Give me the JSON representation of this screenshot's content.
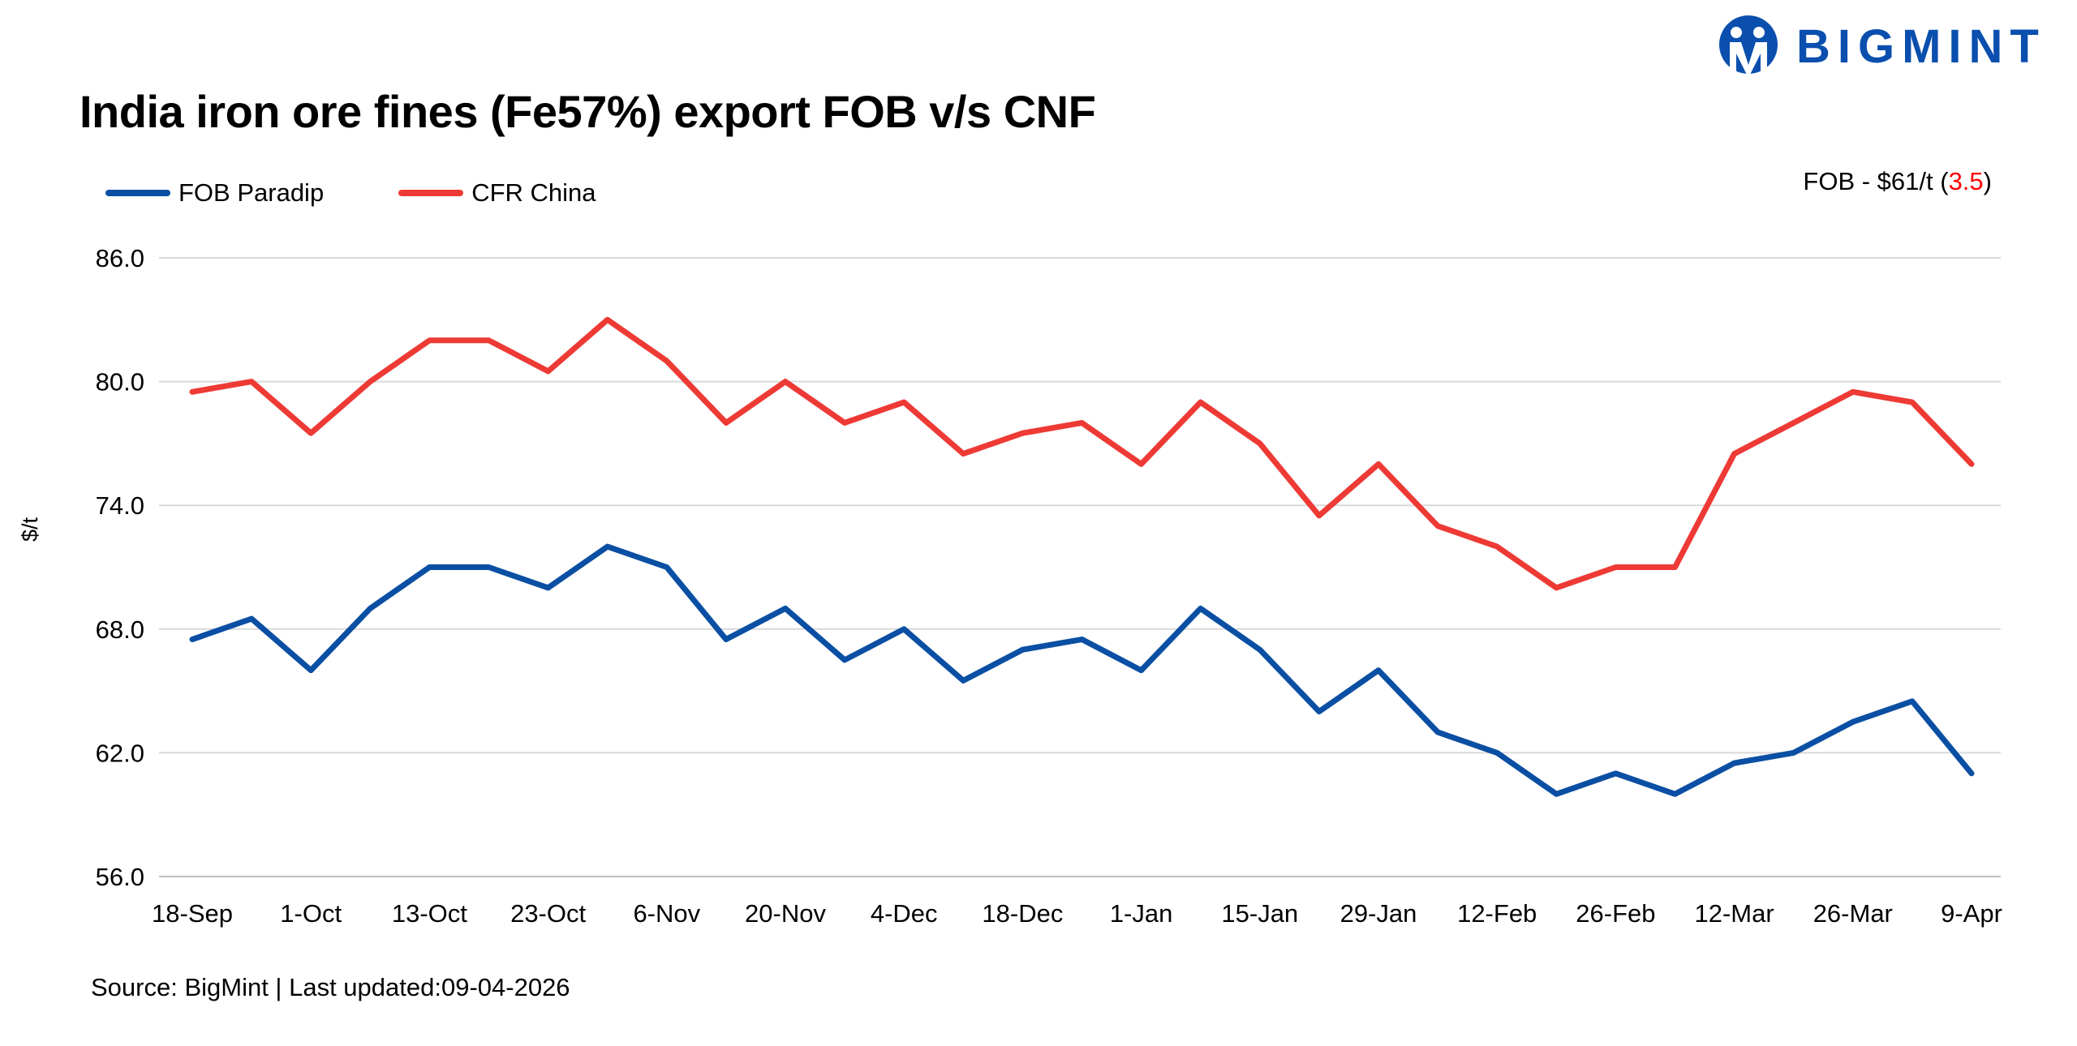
{
  "header": {
    "title": "India iron ore fines (Fe57%) export FOB v/s CNF",
    "logo_text": "BIGMINT",
    "logo_color": "#0a4fae"
  },
  "annotation": {
    "prefix": "FOB - $61/t (",
    "change": "3.5",
    "suffix": ")",
    "change_color": "#ff0000"
  },
  "footer": {
    "source": "Source: BigMint | Last updated:09-04-2026"
  },
  "chart_data": {
    "type": "line",
    "title": "India iron ore fines (Fe57%) export FOB v/s CNF",
    "xlabel": "",
    "ylabel": "$/t",
    "ylim": [
      56,
      86
    ],
    "yticks": [
      "86.0",
      "80.0",
      "74.0",
      "68.0",
      "62.0",
      "56.0"
    ],
    "ytick_values": [
      86,
      80,
      74,
      68,
      62,
      56
    ],
    "grid": true,
    "legend": "top-left",
    "xtick_labels": [
      "18-Sep",
      "1-Oct",
      "13-Oct",
      "23-Oct",
      "6-Nov",
      "20-Nov",
      "4-Dec",
      "18-Dec",
      "1-Jan",
      "15-Jan",
      "29-Jan",
      "12-Feb",
      "26-Feb",
      "12-Mar",
      "26-Mar",
      "9-Apr"
    ],
    "series": [
      {
        "name": "FOB Paradip",
        "color": "#0a4fa3",
        "values": [
          67.5,
          68.5,
          66,
          69,
          71,
          71,
          70,
          72,
          71,
          67.5,
          69,
          66.5,
          68,
          65.5,
          67,
          67.5,
          66,
          69,
          67,
          64,
          66,
          63,
          62,
          60,
          61,
          60,
          61.5,
          62,
          63.5,
          64.5,
          61
        ]
      },
      {
        "name": "CFR China",
        "color": "#ee3a35",
        "values": [
          79.5,
          80,
          77.5,
          80,
          82,
          82,
          80.5,
          83,
          81,
          78,
          80,
          78,
          79,
          76.5,
          77.5,
          78,
          76,
          79,
          77,
          73.5,
          76,
          73,
          72,
          70,
          71,
          71,
          76.5,
          78,
          79.5,
          79,
          76
        ]
      }
    ]
  }
}
